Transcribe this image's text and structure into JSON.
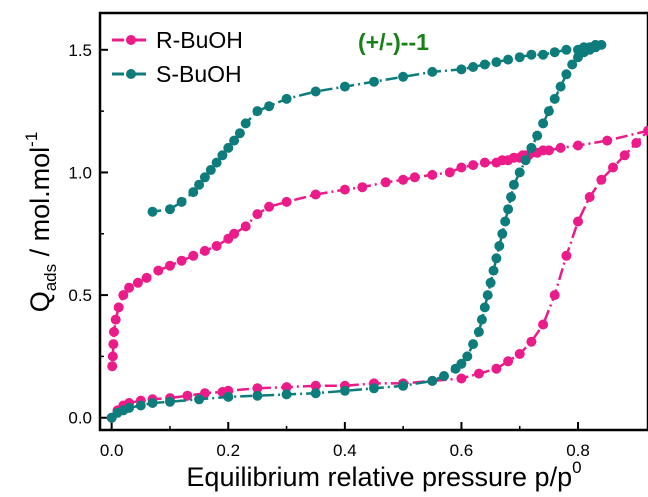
{
  "chart_data": {
    "type": "line",
    "title": "",
    "xlabel": "Equilibrium relative pressure p/p",
    "xlabel_sup": "0",
    "ylabel_main": "Q",
    "ylabel_sub": "ads",
    "ylabel_rest": " / mol.mol",
    "ylabel_sup": "-1",
    "annotation": "(+/-)--1",
    "annotation_color": "#168116",
    "xlim": [
      -0.02,
      0.92
    ],
    "ylim": [
      -0.05,
      1.65
    ],
    "x_ticks": [
      0.0,
      0.2,
      0.4,
      0.6,
      0.8
    ],
    "x_tick_labels": [
      "0.0",
      "0.2",
      "0.4",
      "0.6",
      "0.8"
    ],
    "y_ticks": [
      0.0,
      0.5,
      1.0,
      1.5
    ],
    "y_tick_labels": [
      "0.0",
      "0.5",
      "1.0",
      "1.5"
    ],
    "legend_position": "top-left",
    "series": [
      {
        "name": "R-BuOH",
        "color": "#ec1b8a",
        "line_style": "dash-dot",
        "x": [
          0.0,
          0.01,
          0.02,
          0.03,
          0.05,
          0.07,
          0.1,
          0.13,
          0.16,
          0.19,
          0.2,
          0.25,
          0.3,
          0.35,
          0.4,
          0.45,
          0.5,
          0.55,
          0.6,
          0.63,
          0.66,
          0.68,
          0.7,
          0.72,
          0.74,
          0.76,
          0.78,
          0.8,
          0.82,
          0.84,
          0.86,
          0.88,
          0.9,
          0.92,
          0.85,
          0.8,
          0.77,
          0.75,
          0.74,
          0.73,
          0.72,
          0.715,
          0.71,
          0.705,
          0.7,
          0.69,
          0.68,
          0.67,
          0.66,
          0.64,
          0.62,
          0.6,
          0.58,
          0.55,
          0.52,
          0.5,
          0.47,
          0.43,
          0.4,
          0.35,
          0.3,
          0.27,
          0.25,
          0.23,
          0.21,
          0.2,
          0.18,
          0.16,
          0.14,
          0.12,
          0.1,
          0.08,
          0.06,
          0.045,
          0.03,
          0.02,
          0.012,
          0.007,
          0.004,
          0.003,
          0.002,
          0.001
        ],
        "y": [
          0.0,
          0.03,
          0.05,
          0.06,
          0.07,
          0.075,
          0.08,
          0.09,
          0.1,
          0.105,
          0.11,
          0.12,
          0.125,
          0.13,
          0.13,
          0.14,
          0.14,
          0.15,
          0.16,
          0.18,
          0.2,
          0.23,
          0.26,
          0.31,
          0.38,
          0.5,
          0.66,
          0.8,
          0.9,
          0.97,
          1.02,
          1.07,
          1.12,
          1.17,
          1.13,
          1.11,
          1.1,
          1.09,
          1.09,
          1.08,
          1.08,
          1.07,
          1.07,
          1.07,
          1.06,
          1.06,
          1.05,
          1.05,
          1.04,
          1.04,
          1.03,
          1.02,
          1.0,
          0.99,
          0.98,
          0.97,
          0.96,
          0.94,
          0.93,
          0.91,
          0.88,
          0.86,
          0.83,
          0.78,
          0.75,
          0.73,
          0.7,
          0.68,
          0.66,
          0.64,
          0.62,
          0.6,
          0.57,
          0.55,
          0.53,
          0.5,
          0.45,
          0.4,
          0.35,
          0.3,
          0.25,
          0.21
        ]
      },
      {
        "name": "S-BuOH",
        "color": "#0f7c7c",
        "line_style": "dash-dot",
        "x": [
          0.0,
          0.01,
          0.02,
          0.03,
          0.05,
          0.07,
          0.1,
          0.15,
          0.2,
          0.25,
          0.3,
          0.35,
          0.4,
          0.45,
          0.5,
          0.55,
          0.57,
          0.59,
          0.6,
          0.61,
          0.62,
          0.63,
          0.635,
          0.64,
          0.645,
          0.65,
          0.655,
          0.66,
          0.665,
          0.67,
          0.675,
          0.68,
          0.685,
          0.69,
          0.7,
          0.71,
          0.72,
          0.73,
          0.74,
          0.75,
          0.76,
          0.77,
          0.78,
          0.79,
          0.8,
          0.81,
          0.82,
          0.83,
          0.84,
          0.83,
          0.82,
          0.81,
          0.8,
          0.78,
          0.76,
          0.74,
          0.72,
          0.7,
          0.68,
          0.66,
          0.64,
          0.62,
          0.6,
          0.55,
          0.5,
          0.45,
          0.4,
          0.35,
          0.3,
          0.27,
          0.25,
          0.23,
          0.22,
          0.21,
          0.2,
          0.19,
          0.18,
          0.17,
          0.16,
          0.15,
          0.14,
          0.12,
          0.1,
          0.07
        ],
        "y": [
          0.0,
          0.02,
          0.03,
          0.04,
          0.05,
          0.06,
          0.065,
          0.075,
          0.085,
          0.09,
          0.095,
          0.1,
          0.11,
          0.12,
          0.13,
          0.15,
          0.17,
          0.2,
          0.22,
          0.25,
          0.3,
          0.35,
          0.4,
          0.45,
          0.5,
          0.55,
          0.6,
          0.65,
          0.7,
          0.75,
          0.8,
          0.85,
          0.9,
          0.95,
          1.0,
          1.05,
          1.1,
          1.15,
          1.2,
          1.25,
          1.3,
          1.35,
          1.4,
          1.44,
          1.47,
          1.49,
          1.5,
          1.51,
          1.52,
          1.52,
          1.51,
          1.51,
          1.5,
          1.5,
          1.49,
          1.48,
          1.48,
          1.47,
          1.46,
          1.45,
          1.44,
          1.43,
          1.42,
          1.41,
          1.39,
          1.37,
          1.35,
          1.33,
          1.3,
          1.27,
          1.25,
          1.2,
          1.16,
          1.13,
          1.1,
          1.07,
          1.04,
          1.01,
          0.98,
          0.95,
          0.92,
          0.88,
          0.85,
          0.84
        ]
      }
    ]
  }
}
